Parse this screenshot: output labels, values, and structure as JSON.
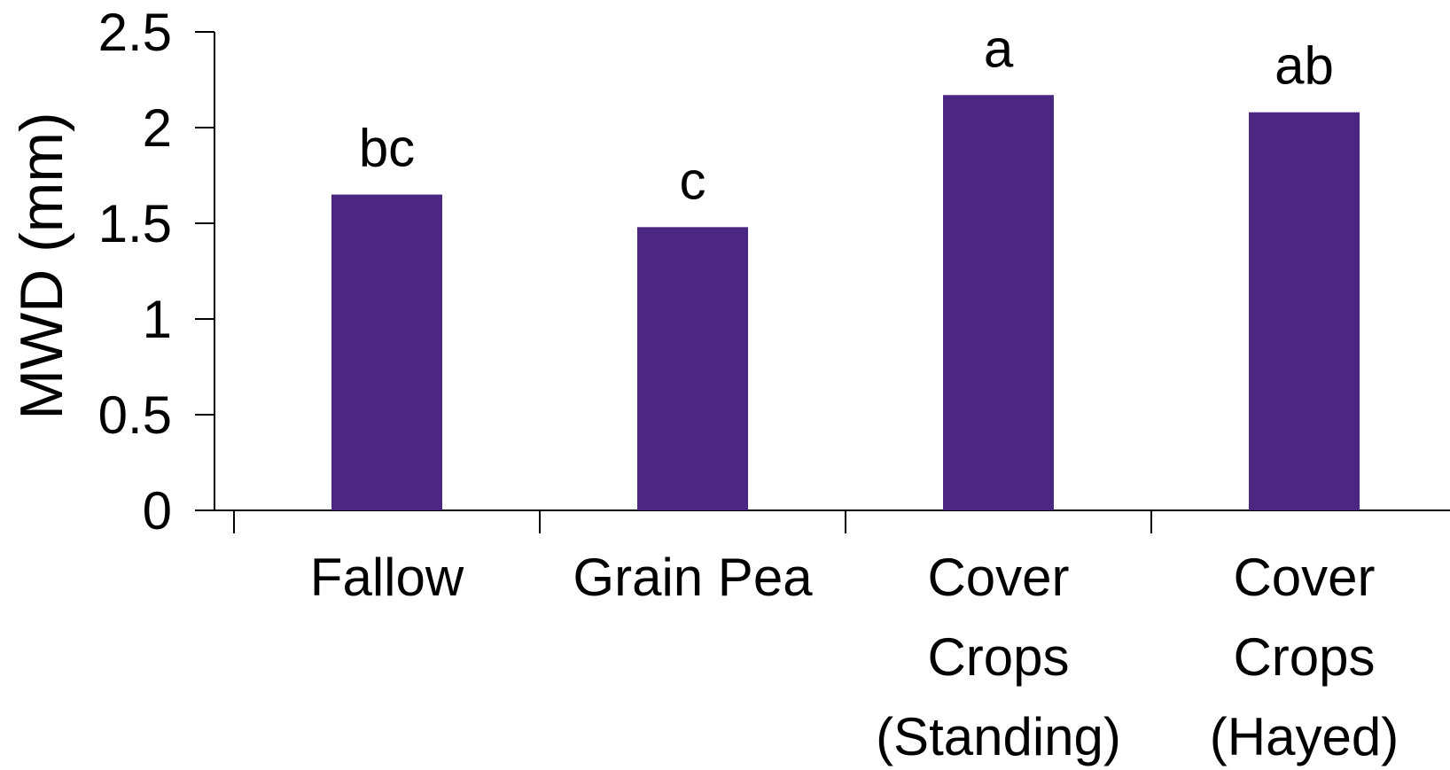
{
  "chart_data": {
    "type": "bar",
    "title": "",
    "xlabel": "",
    "ylabel": "MWD (mm)",
    "ylim": [
      0,
      2.5
    ],
    "yticks": [
      "0",
      "0.5",
      "1",
      "1.5",
      "2",
      "2.5"
    ],
    "grid": false,
    "bar_color": "#4B2683",
    "categories": [
      {
        "lines": [
          "Fallow"
        ],
        "value": 1.65,
        "label": "bc"
      },
      {
        "lines": [
          "Grain Pea"
        ],
        "value": 1.48,
        "label": "c"
      },
      {
        "lines": [
          "Cover",
          "Crops",
          "(Standing)"
        ],
        "value": 2.17,
        "label": "a"
      },
      {
        "lines": [
          "Cover",
          "Crops",
          "(Hayed)"
        ],
        "value": 2.08,
        "label": "ab"
      }
    ]
  }
}
